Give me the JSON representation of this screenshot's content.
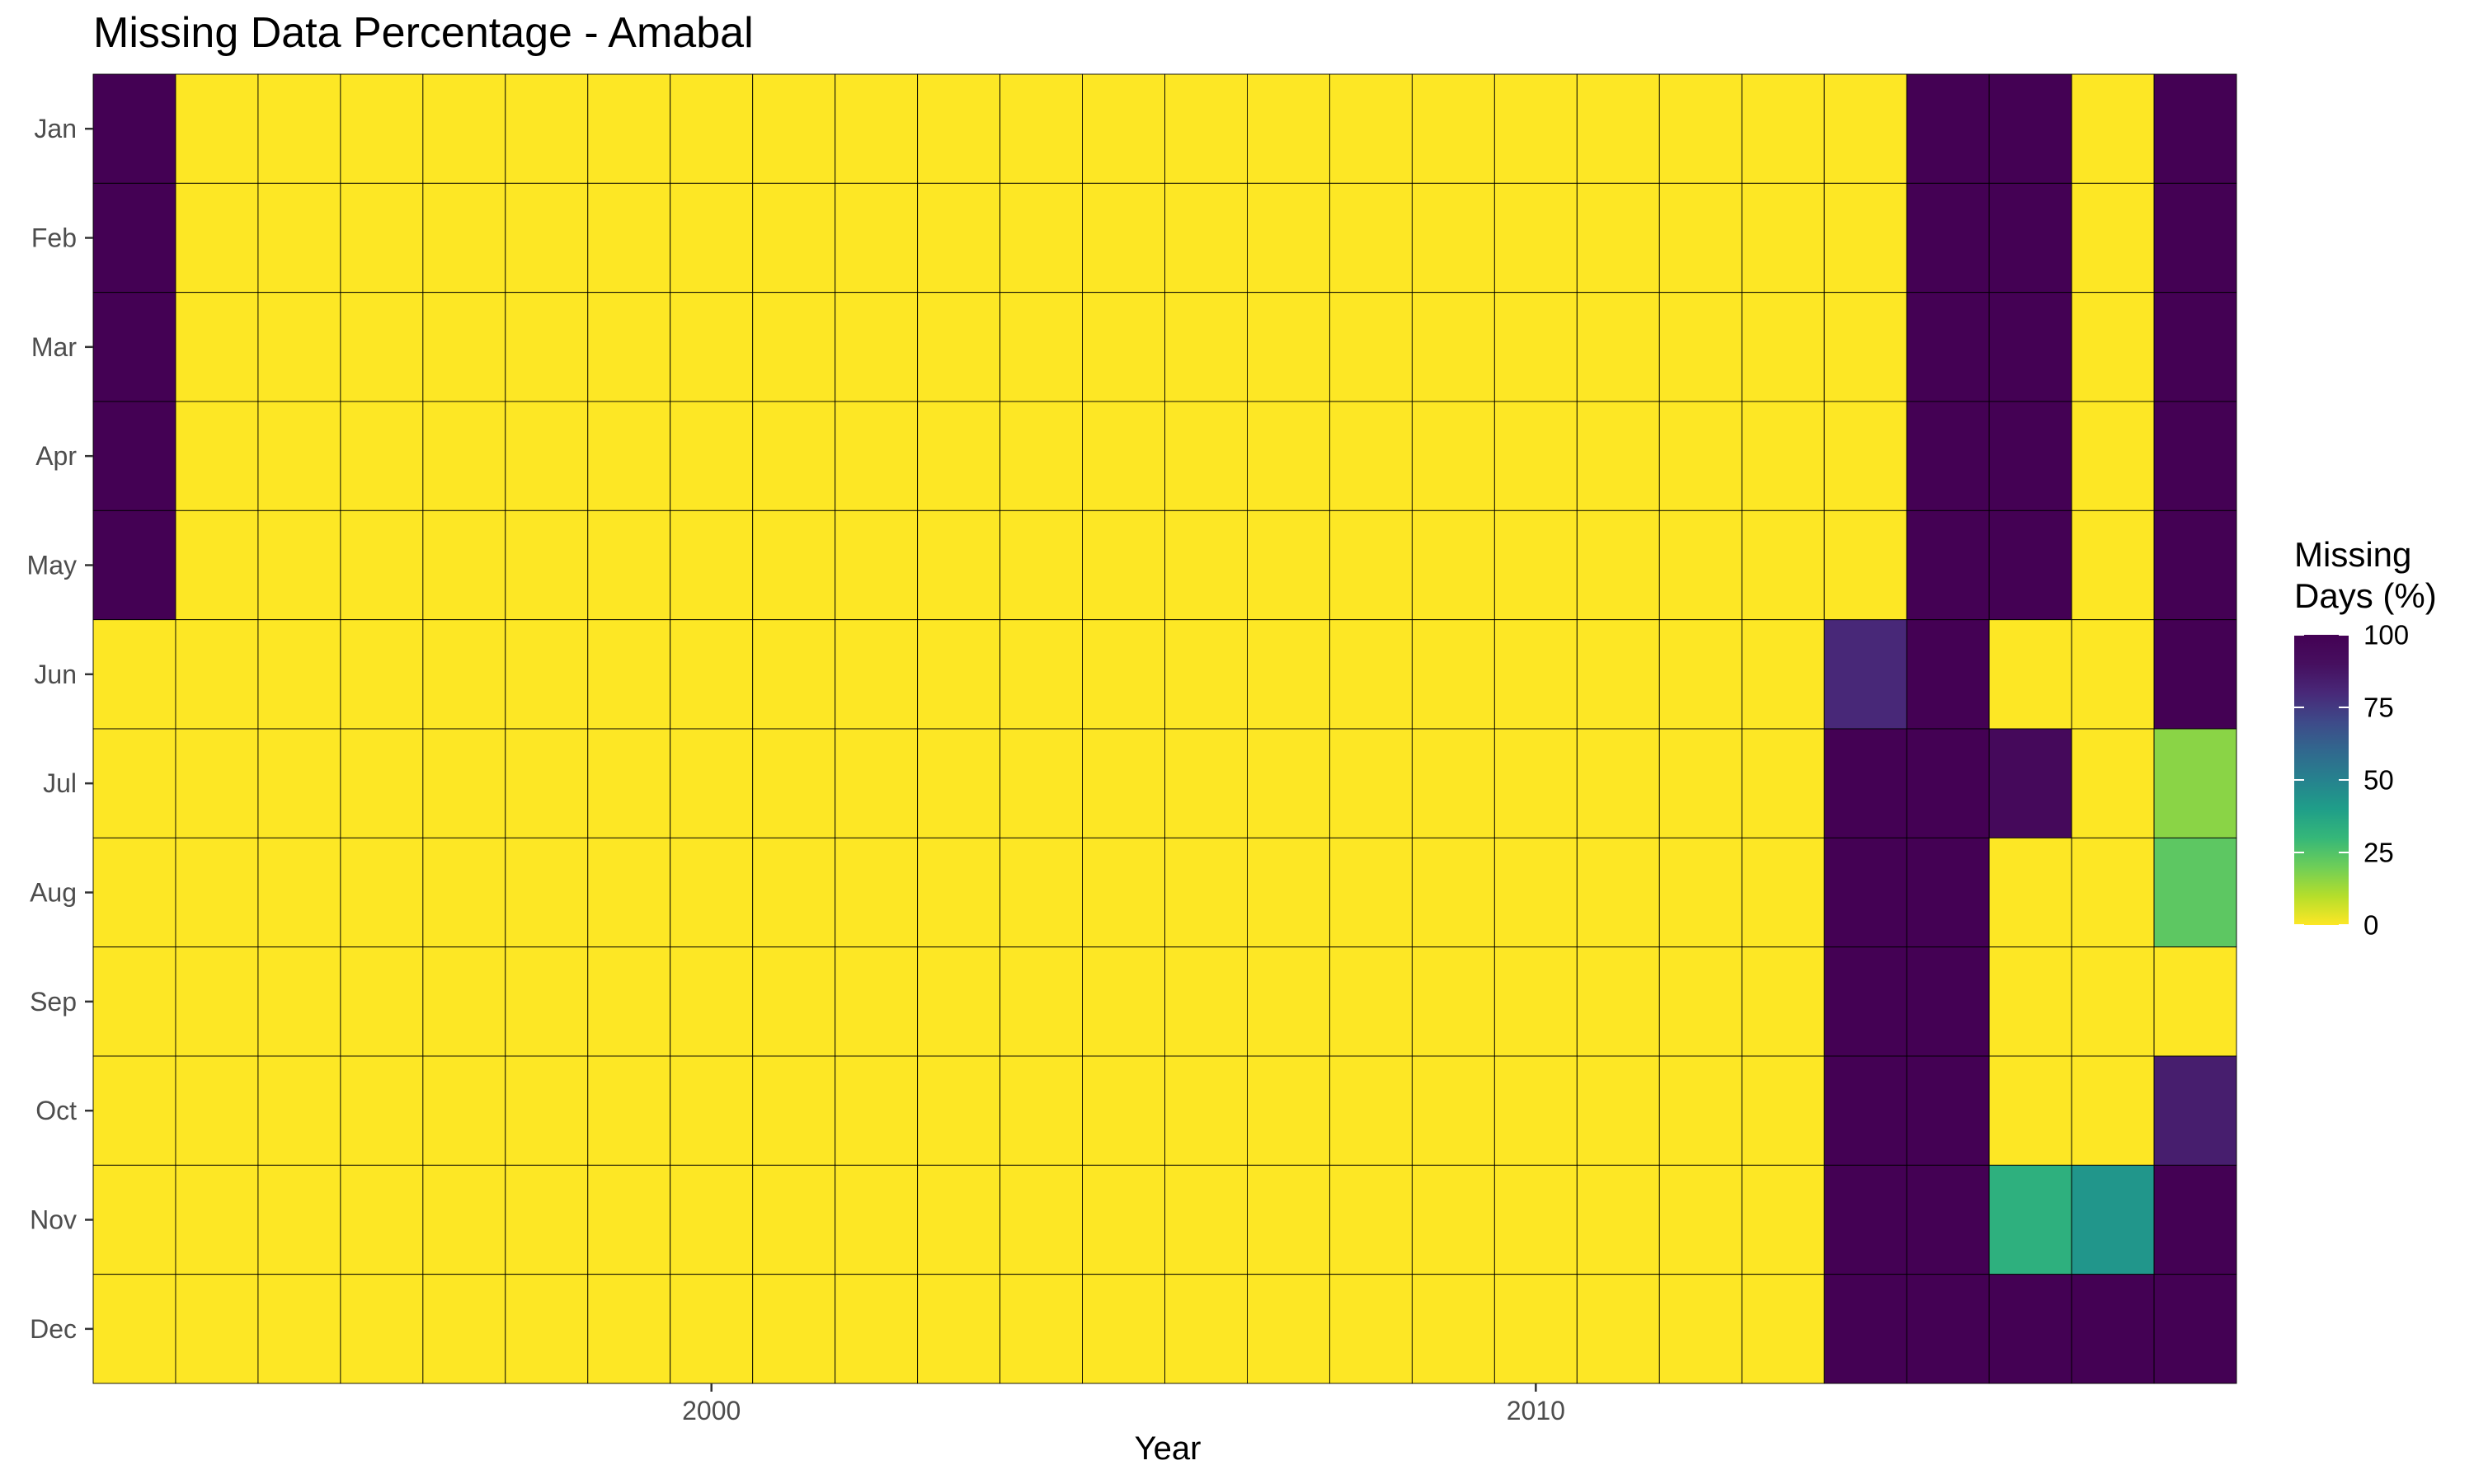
{
  "chart_data": {
    "type": "heatmap",
    "title": "Missing Data Percentage - Amabal",
    "xlabel": "Year",
    "ylabel": "",
    "legend_title": "Missing Days (%)",
    "legend_title_lines": [
      "Missing",
      "Days (%)"
    ],
    "legend_position": "right",
    "colormap": "viridis (reversed)",
    "color_range": [
      0,
      100
    ],
    "legend_ticks": [
      0,
      25,
      50,
      75,
      100
    ],
    "x_ticks": [
      2000,
      2010
    ],
    "years": [
      1993,
      1994,
      1995,
      1996,
      1997,
      1998,
      1999,
      2000,
      2001,
      2002,
      2003,
      2004,
      2005,
      2006,
      2007,
      2008,
      2009,
      2010,
      2011,
      2012,
      2013,
      2014,
      2015,
      2016,
      2017,
      2018
    ],
    "months": [
      "Jan",
      "Feb",
      "Mar",
      "Apr",
      "May",
      "Jun",
      "Jul",
      "Aug",
      "Sep",
      "Oct",
      "Nov",
      "Dec"
    ],
    "values": [
      [
        100,
        0,
        0,
        0,
        0,
        0,
        0,
        0,
        0,
        0,
        0,
        0,
        0,
        0,
        0,
        0,
        0,
        0,
        0,
        0,
        0,
        0,
        100,
        100,
        0,
        100
      ],
      [
        100,
        0,
        0,
        0,
        0,
        0,
        0,
        0,
        0,
        0,
        0,
        0,
        0,
        0,
        0,
        0,
        0,
        0,
        0,
        0,
        0,
        0,
        100,
        100,
        0,
        100
      ],
      [
        100,
        0,
        0,
        0,
        0,
        0,
        0,
        0,
        0,
        0,
        0,
        0,
        0,
        0,
        0,
        0,
        0,
        0,
        0,
        0,
        0,
        0,
        100,
        100,
        0,
        100
      ],
      [
        100,
        0,
        0,
        0,
        0,
        0,
        0,
        0,
        0,
        0,
        0,
        0,
        0,
        0,
        0,
        0,
        0,
        0,
        0,
        0,
        0,
        0,
        100,
        100,
        0,
        100
      ],
      [
        100,
        0,
        0,
        0,
        0,
        0,
        0,
        0,
        0,
        0,
        0,
        0,
        0,
        0,
        0,
        0,
        0,
        0,
        0,
        0,
        0,
        0,
        100,
        100,
        0,
        100
      ],
      [
        0,
        0,
        0,
        0,
        0,
        0,
        0,
        0,
        0,
        0,
        0,
        0,
        0,
        0,
        0,
        0,
        0,
        0,
        0,
        0,
        0,
        80,
        100,
        0,
        0,
        100
      ],
      [
        0,
        0,
        0,
        0,
        0,
        0,
        0,
        0,
        0,
        0,
        0,
        0,
        0,
        0,
        0,
        0,
        0,
        0,
        0,
        0,
        0,
        100,
        100,
        94,
        0,
        16
      ],
      [
        0,
        0,
        0,
        0,
        0,
        0,
        0,
        0,
        0,
        0,
        0,
        0,
        0,
        0,
        0,
        0,
        0,
        0,
        0,
        0,
        0,
        100,
        100,
        0,
        0,
        23
      ],
      [
        0,
        0,
        0,
        0,
        0,
        0,
        0,
        0,
        0,
        0,
        0,
        0,
        0,
        0,
        0,
        0,
        0,
        0,
        0,
        0,
        0,
        100,
        100,
        0,
        0,
        0
      ],
      [
        0,
        0,
        0,
        0,
        0,
        0,
        0,
        0,
        0,
        0,
        0,
        0,
        0,
        0,
        0,
        0,
        0,
        0,
        0,
        0,
        0,
        100,
        100,
        0,
        0,
        84
      ],
      [
        0,
        0,
        0,
        0,
        0,
        0,
        0,
        0,
        0,
        0,
        0,
        0,
        0,
        0,
        0,
        0,
        0,
        0,
        0,
        0,
        0,
        100,
        100,
        33,
        43,
        100
      ],
      [
        0,
        0,
        0,
        0,
        0,
        0,
        0,
        0,
        0,
        0,
        0,
        0,
        0,
        0,
        0,
        0,
        0,
        0,
        0,
        0,
        0,
        100,
        100,
        100,
        100,
        100
      ]
    ]
  }
}
